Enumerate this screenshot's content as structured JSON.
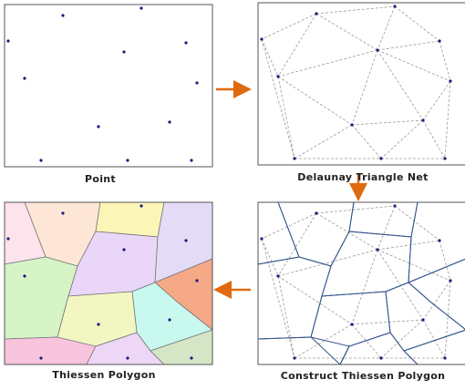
{
  "panels": [
    {
      "label": "Point"
    },
    {
      "label": "Delaunay Triangle Net"
    },
    {
      "label": "Thiessen Polygon"
    },
    {
      "label": "Construct Thiessen Polygon"
    }
  ]
}
